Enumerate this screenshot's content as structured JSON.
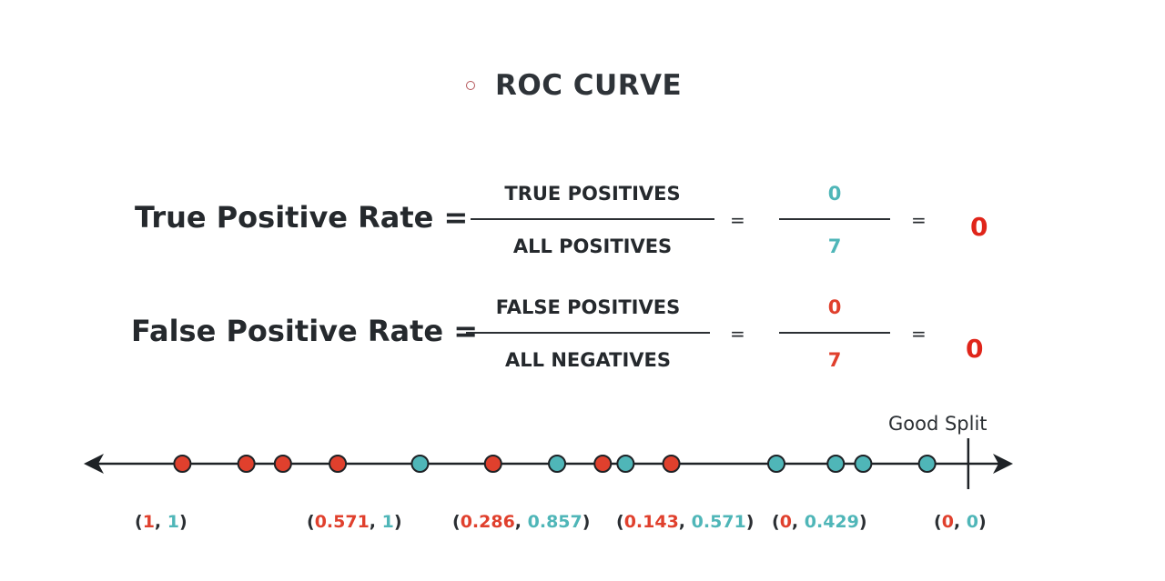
{
  "title": "ROC CURVE",
  "tpr": {
    "label": "True Positive Rate =",
    "numerator": "TRUE POSITIVES",
    "denominator": "ALL POSITIVES",
    "eq1": "=",
    "num_value": "0",
    "den_value": "7",
    "eq2": "=",
    "result": "0"
  },
  "fpr": {
    "label": "False Positive Rate =",
    "numerator": "FALSE POSITIVES",
    "denominator": "ALL NEGATIVES",
    "eq1": "=",
    "num_value": "0",
    "den_value": "7",
    "eq2": "=",
    "result": "0"
  },
  "split_label": "Good Split",
  "colors": {
    "positive": "#4fb6b8",
    "negative": "#e0402d",
    "axis": "#1e2226"
  },
  "points": [
    {
      "class": "negative",
      "value": 0.1
    },
    {
      "class": "negative",
      "value": 0.17
    },
    {
      "class": "negative",
      "value": 0.21
    },
    {
      "class": "negative",
      "value": 0.27
    },
    {
      "class": "positive",
      "value": 0.36
    },
    {
      "class": "negative",
      "value": 0.44
    },
    {
      "class": "positive",
      "value": 0.51
    },
    {
      "class": "negative",
      "value": 0.56
    },
    {
      "class": "positive",
      "value": 0.585
    },
    {
      "class": "negative",
      "value": 0.635
    },
    {
      "class": "positive",
      "value": 0.75
    },
    {
      "class": "positive",
      "value": 0.815
    },
    {
      "class": "positive",
      "value": 0.845
    },
    {
      "class": "positive",
      "value": 0.915
    }
  ],
  "split_value": 0.96,
  "coords": [
    {
      "fpr": "1",
      "tpr": "1"
    },
    {
      "fpr": "0.571",
      "tpr": "1"
    },
    {
      "fpr": "0.286",
      "tpr": "0.857"
    },
    {
      "fpr": "0.143",
      "tpr": "0.571"
    },
    {
      "fpr": "0",
      "tpr": "0.429"
    },
    {
      "fpr": "0",
      "tpr": "0"
    }
  ]
}
